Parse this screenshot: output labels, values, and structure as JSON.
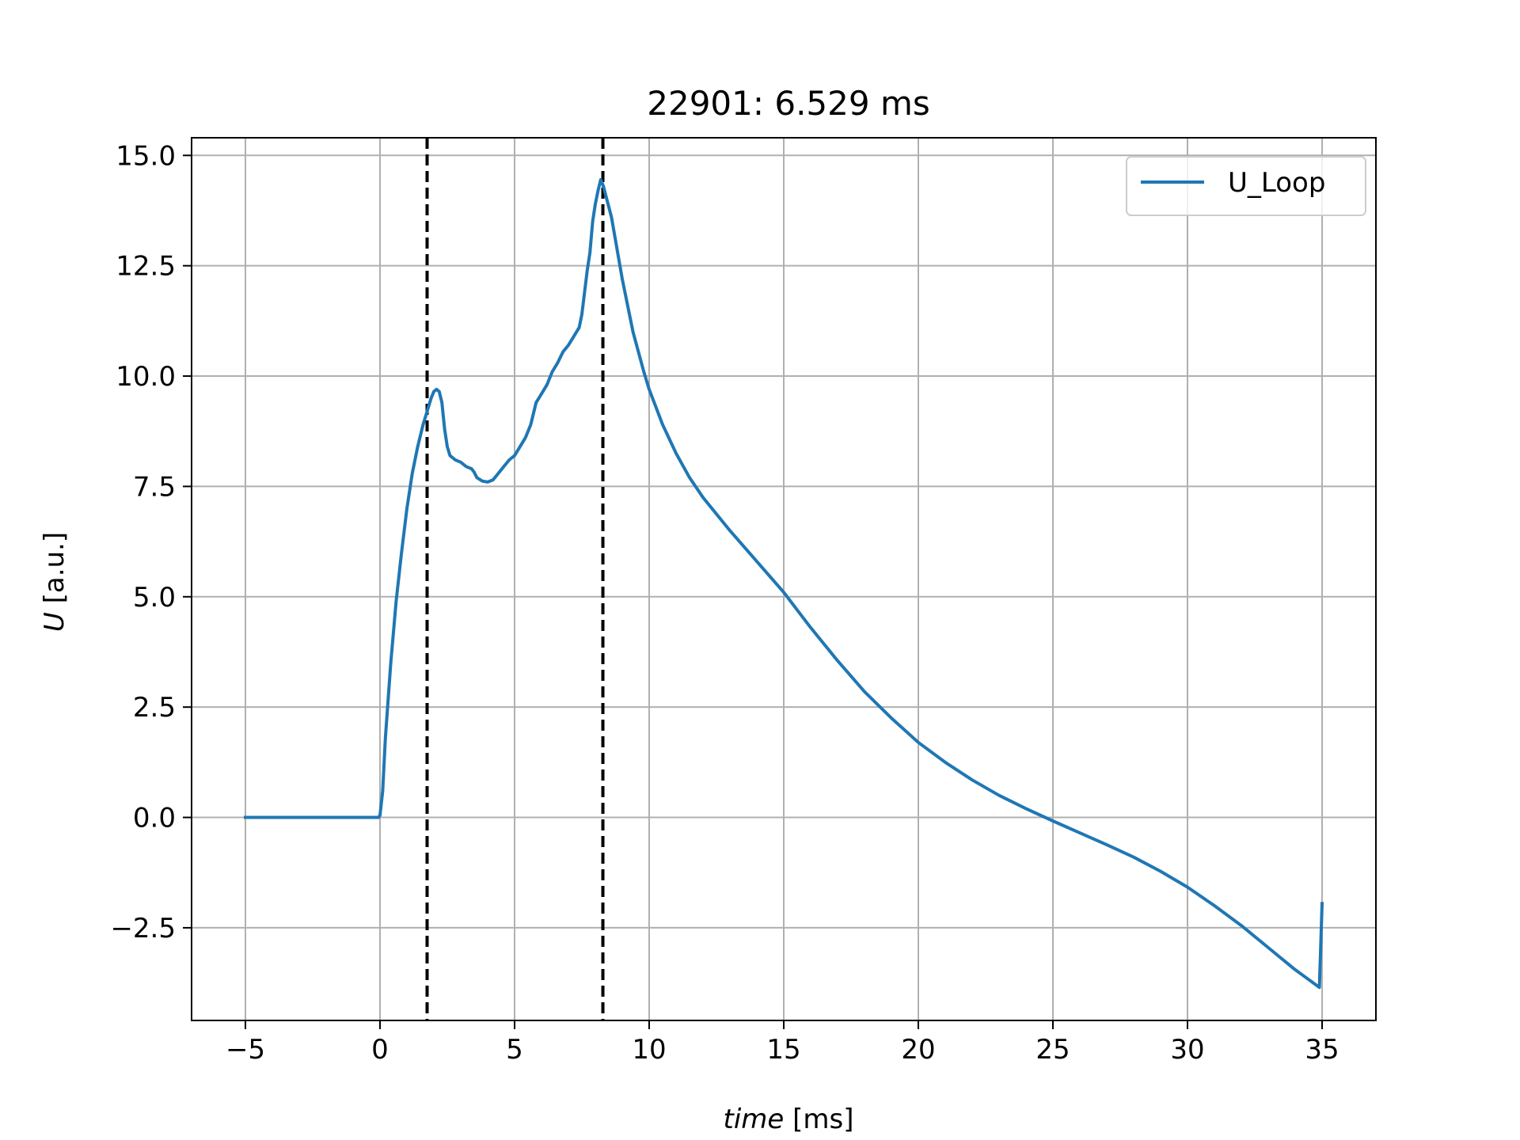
{
  "chart_data": {
    "type": "line",
    "title": "22901: 6.529 ms",
    "xlabel": {
      "var": "time",
      "unit": " [ms]"
    },
    "ylabel": {
      "var": "U",
      "unit": " [a.u.]"
    },
    "xlim": [
      -7,
      37
    ],
    "ylim": [
      -4.6,
      15.4
    ],
    "xticks": [
      -5,
      0,
      5,
      10,
      15,
      20,
      25,
      30,
      35
    ],
    "xtick_labels": [
      "−5",
      "0",
      "5",
      "10",
      "15",
      "20",
      "25",
      "30",
      "35"
    ],
    "yticks": [
      -2.5,
      0.0,
      2.5,
      5.0,
      7.5,
      10.0,
      12.5,
      15.0
    ],
    "ytick_labels": [
      "−2.5",
      "0.0",
      "2.5",
      "5.0",
      "7.5",
      "10.0",
      "12.5",
      "15.0"
    ],
    "grid": true,
    "legend": {
      "position": "top-right",
      "entries": [
        "U_Loop"
      ]
    },
    "vlines": [
      {
        "x": 1.75,
        "style": "dashed",
        "color": "#000000"
      },
      {
        "x": 8.28,
        "style": "dashed",
        "color": "#000000"
      }
    ],
    "series": [
      {
        "name": "U_Loop",
        "color": "#1f77b4",
        "points": [
          [
            -5.0,
            0.0
          ],
          [
            -2.0,
            0.0
          ],
          [
            -0.05,
            0.0
          ],
          [
            0.0,
            0.05
          ],
          [
            0.1,
            0.6
          ],
          [
            0.2,
            1.8
          ],
          [
            0.4,
            3.5
          ],
          [
            0.6,
            4.9
          ],
          [
            0.8,
            6.0
          ],
          [
            1.0,
            7.0
          ],
          [
            1.2,
            7.8
          ],
          [
            1.4,
            8.4
          ],
          [
            1.6,
            8.9
          ],
          [
            1.8,
            9.3
          ],
          [
            1.9,
            9.5
          ],
          [
            2.0,
            9.65
          ],
          [
            2.1,
            9.7
          ],
          [
            2.2,
            9.65
          ],
          [
            2.3,
            9.4
          ],
          [
            2.4,
            8.8
          ],
          [
            2.5,
            8.4
          ],
          [
            2.6,
            8.2
          ],
          [
            2.8,
            8.1
          ],
          [
            3.0,
            8.05
          ],
          [
            3.2,
            7.95
          ],
          [
            3.4,
            7.9
          ],
          [
            3.5,
            7.82
          ],
          [
            3.6,
            7.7
          ],
          [
            3.8,
            7.62
          ],
          [
            4.0,
            7.6
          ],
          [
            4.2,
            7.65
          ],
          [
            4.4,
            7.8
          ],
          [
            4.6,
            7.95
          ],
          [
            4.8,
            8.1
          ],
          [
            5.0,
            8.2
          ],
          [
            5.2,
            8.4
          ],
          [
            5.4,
            8.6
          ],
          [
            5.6,
            8.9
          ],
          [
            5.8,
            9.4
          ],
          [
            6.0,
            9.6
          ],
          [
            6.2,
            9.8
          ],
          [
            6.4,
            10.1
          ],
          [
            6.6,
            10.3
          ],
          [
            6.8,
            10.55
          ],
          [
            7.0,
            10.7
          ],
          [
            7.2,
            10.9
          ],
          [
            7.4,
            11.1
          ],
          [
            7.5,
            11.4
          ],
          [
            7.6,
            11.9
          ],
          [
            7.7,
            12.4
          ],
          [
            7.8,
            12.8
          ],
          [
            7.9,
            13.5
          ],
          [
            8.0,
            13.9
          ],
          [
            8.1,
            14.2
          ],
          [
            8.2,
            14.45
          ],
          [
            8.3,
            14.3
          ],
          [
            8.6,
            13.6
          ],
          [
            9.0,
            12.2
          ],
          [
            9.4,
            11.0
          ],
          [
            9.8,
            10.1
          ],
          [
            10.0,
            9.7
          ],
          [
            10.5,
            8.9
          ],
          [
            11.0,
            8.25
          ],
          [
            11.5,
            7.7
          ],
          [
            12.0,
            7.25
          ],
          [
            13.0,
            6.5
          ],
          [
            14.0,
            5.8
          ],
          [
            15.0,
            5.1
          ],
          [
            16.0,
            4.3
          ],
          [
            17.0,
            3.55
          ],
          [
            18.0,
            2.85
          ],
          [
            19.0,
            2.25
          ],
          [
            20.0,
            1.7
          ],
          [
            21.0,
            1.25
          ],
          [
            22.0,
            0.85
          ],
          [
            23.0,
            0.5
          ],
          [
            24.0,
            0.2
          ],
          [
            25.0,
            -0.08
          ],
          [
            26.0,
            -0.35
          ],
          [
            27.0,
            -0.62
          ],
          [
            28.0,
            -0.9
          ],
          [
            29.0,
            -1.22
          ],
          [
            30.0,
            -1.58
          ],
          [
            31.0,
            -2.0
          ],
          [
            32.0,
            -2.45
          ],
          [
            33.0,
            -2.95
          ],
          [
            34.0,
            -3.45
          ],
          [
            34.9,
            -3.85
          ],
          [
            35.0,
            -1.95
          ]
        ]
      }
    ]
  }
}
